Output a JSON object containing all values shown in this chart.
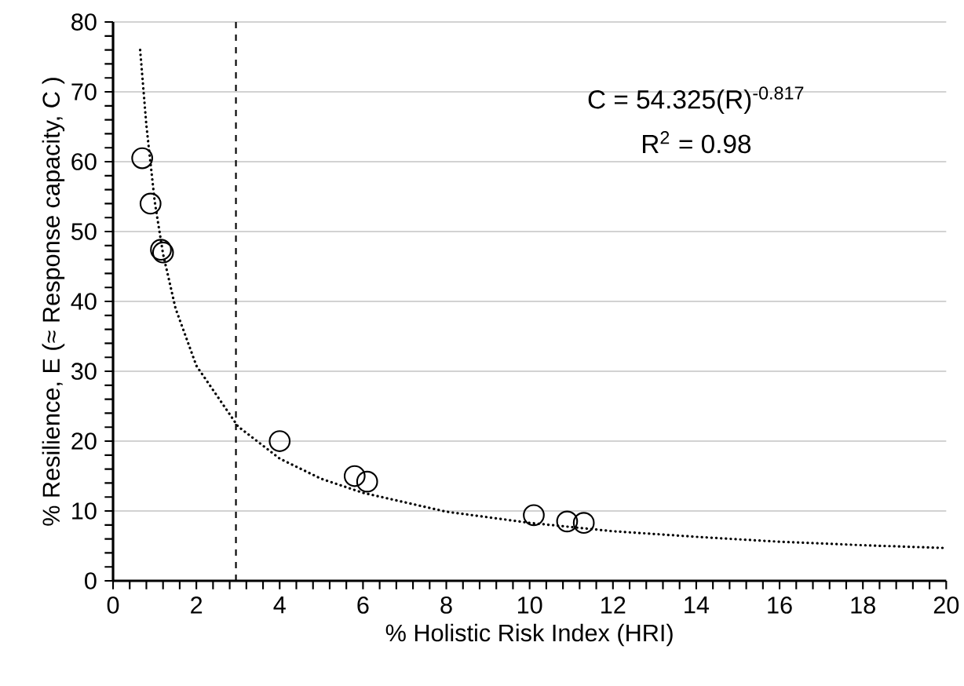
{
  "chart_data": {
    "type": "scatter",
    "xlabel": "% Holistic Risk Index (HRI)",
    "ylabel": "% Resilience, E (≈ Response capacity, C )",
    "xlim": [
      0,
      20
    ],
    "ylim": [
      0,
      80
    ],
    "xticks": [
      0,
      2,
      4,
      6,
      8,
      10,
      12,
      14,
      16,
      18,
      20
    ],
    "yticks": [
      0,
      10,
      20,
      30,
      40,
      50,
      60,
      70,
      80
    ],
    "grid": "y",
    "marker": "circle",
    "series": [
      {
        "color": "#000000",
        "x": [
          0.7,
          0.9,
          1.15,
          1.2,
          4.0,
          5.8,
          6.1,
          10.1,
          10.9,
          11.3
        ],
        "values": [
          60.5,
          54,
          47.4,
          47,
          20,
          15,
          14.2,
          9.4,
          8.5,
          8.3
        ]
      },
      {
        "type": "line",
        "color": "#000000",
        "line_style": "dotted",
        "marker": "none",
        "x": [
          0.65,
          0.8,
          1,
          1.2,
          1.5,
          2,
          3,
          4,
          5,
          6,
          8,
          10,
          12,
          14,
          16,
          18,
          20
        ],
        "values": [
          76,
          65.2,
          54.3,
          46.8,
          39,
          30.8,
          22.1,
          17.5,
          14.6,
          12.6,
          9.9,
          8.3,
          7.1,
          6.3,
          5.6,
          5.1,
          4.7
        ]
      }
    ],
    "ref_lines": [
      {
        "axis": "x",
        "value": 2.95,
        "color": "#000000",
        "line_style": "dashed"
      }
    ],
    "annotations": [
      "C = 54.325(R)$^{-0.817}$",
      "R$^{2}$ = 0.98"
    ]
  }
}
